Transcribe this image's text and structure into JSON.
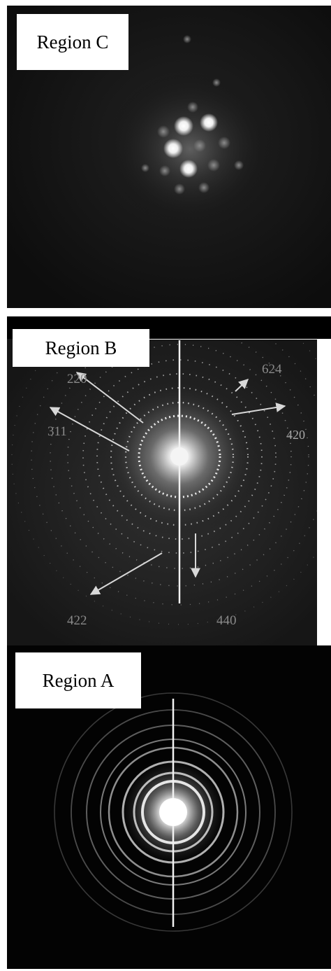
{
  "figure": {
    "panels": [
      {
        "id": "region-c",
        "label": "Region C",
        "pattern": "single-crystal spot pattern"
      },
      {
        "id": "region-b",
        "label": "Region B",
        "pattern": "polycrystalline ring pattern with spots"
      },
      {
        "id": "region-a",
        "label": "Region A",
        "pattern": "continuous ring pattern"
      }
    ],
    "region_b_indices": {
      "i220": "220",
      "i624": "624",
      "i311": "311",
      "i420": "420",
      "i422": "422",
      "i440": "440"
    }
  },
  "colors": {
    "background": "#ffffff",
    "panel_dark": "#0f0f0f",
    "label_box": "#ffffff",
    "annotation_text": "#8a8a8a",
    "arrow": "#d8d8d8"
  }
}
